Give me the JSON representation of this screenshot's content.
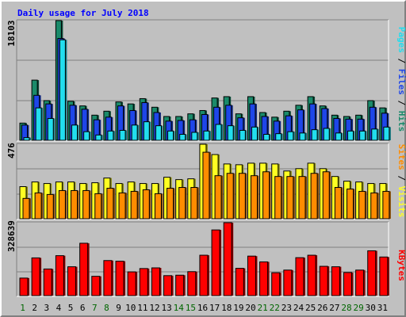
{
  "title": "Daily usage for July 2018",
  "colors": {
    "hits": "#1a8a6a",
    "files": "#1e46e8",
    "pages": "#22ddee",
    "visits": "#ffff22",
    "sites": "#ff8c00",
    "kbytes": "#ff0000",
    "weekday_label": "#000000",
    "weekend_label": "#006600"
  },
  "chart_data": [
    {
      "type": "bar",
      "title": "Daily usage for July 2018",
      "categories": [
        "1",
        "2",
        "3",
        "4",
        "5",
        "6",
        "7",
        "8",
        "9",
        "10",
        "11",
        "12",
        "13",
        "14",
        "15",
        "16",
        "17",
        "18",
        "19",
        "20",
        "21",
        "22",
        "23",
        "24",
        "25",
        "26",
        "27",
        "28",
        "29",
        "30",
        "31"
      ],
      "weekend_days": [
        "1",
        "7",
        "8",
        "14",
        "15",
        "21",
        "22",
        "28",
        "29"
      ],
      "ylabel_max": "18103",
      "ylim": [
        0,
        18103
      ],
      "legend": [
        "Pages",
        "Files",
        "Hits"
      ],
      "series": [
        {
          "name": "Hits",
          "values": [
            2600,
            9100,
            6000,
            18103,
            5900,
            5200,
            3800,
            4400,
            5800,
            5500,
            6300,
            5000,
            3600,
            3600,
            4000,
            4500,
            6400,
            6600,
            4000,
            6600,
            4200,
            3500,
            4400,
            5300,
            6600,
            5200,
            3800,
            3600,
            3800,
            6000,
            4900
          ]
        },
        {
          "name": "Files",
          "values": [
            2300,
            6800,
            5500,
            15400,
            5300,
            4700,
            3100,
            3500,
            5200,
            4500,
            5700,
            4200,
            2900,
            3000,
            3100,
            3900,
            5000,
            5300,
            3400,
            5500,
            3600,
            2900,
            3700,
            4600,
            5500,
            4800,
            3300,
            3200,
            3200,
            5000,
            4100
          ]
        },
        {
          "name": "Pages",
          "values": [
            400,
            4900,
            3300,
            15200,
            2300,
            1300,
            800,
            1400,
            1500,
            2300,
            2800,
            2200,
            1400,
            900,
            1200,
            1400,
            2400,
            2200,
            1500,
            2000,
            900,
            1000,
            1300,
            1100,
            1600,
            1800,
            1100,
            1400,
            1400,
            1700,
            2000
          ]
        }
      ]
    },
    {
      "type": "bar",
      "categories": [
        "1",
        "2",
        "3",
        "4",
        "5",
        "6",
        "7",
        "8",
        "9",
        "10",
        "11",
        "12",
        "13",
        "14",
        "15",
        "16",
        "17",
        "18",
        "19",
        "20",
        "21",
        "22",
        "23",
        "24",
        "25",
        "26",
        "27",
        "28",
        "29",
        "30",
        "31"
      ],
      "ylabel_max": "476",
      "ylim": [
        0,
        476
      ],
      "legend": [
        "Sites",
        "Visits"
      ],
      "series": [
        {
          "name": "Visits",
          "values": [
            205,
            235,
            225,
            235,
            235,
            225,
            230,
            260,
            225,
            235,
            225,
            225,
            265,
            250,
            255,
            476,
            410,
            350,
            345,
            355,
            355,
            350,
            305,
            320,
            355,
            320,
            270,
            240,
            235,
            225,
            225
          ]
        },
        {
          "name": "Sites",
          "values": [
            130,
            165,
            155,
            180,
            180,
            180,
            160,
            195,
            165,
            175,
            185,
            160,
            195,
            200,
            200,
            425,
            275,
            290,
            290,
            275,
            300,
            270,
            270,
            270,
            290,
            300,
            200,
            190,
            175,
            165,
            175
          ]
        }
      ]
    },
    {
      "type": "bar",
      "categories": [
        "1",
        "2",
        "3",
        "4",
        "5",
        "6",
        "7",
        "8",
        "9",
        "10",
        "11",
        "12",
        "13",
        "14",
        "15",
        "16",
        "17",
        "18",
        "19",
        "20",
        "21",
        "22",
        "23",
        "24",
        "25",
        "26",
        "27",
        "28",
        "29",
        "30",
        "31"
      ],
      "ylabel_max": "328639",
      "ylim": [
        0,
        328639
      ],
      "legend": [
        "KBytes"
      ],
      "series": [
        {
          "name": "KBytes",
          "values": [
            79000,
            170000,
            120000,
            180000,
            130000,
            236000,
            87000,
            158000,
            155000,
            107000,
            122000,
            125000,
            90000,
            92000,
            108000,
            182000,
            296000,
            328639,
            123000,
            178000,
            152000,
            103000,
            115000,
            171000,
            182000,
            132000,
            130000,
            104000,
            115000,
            202000,
            174000
          ]
        }
      ]
    }
  ]
}
